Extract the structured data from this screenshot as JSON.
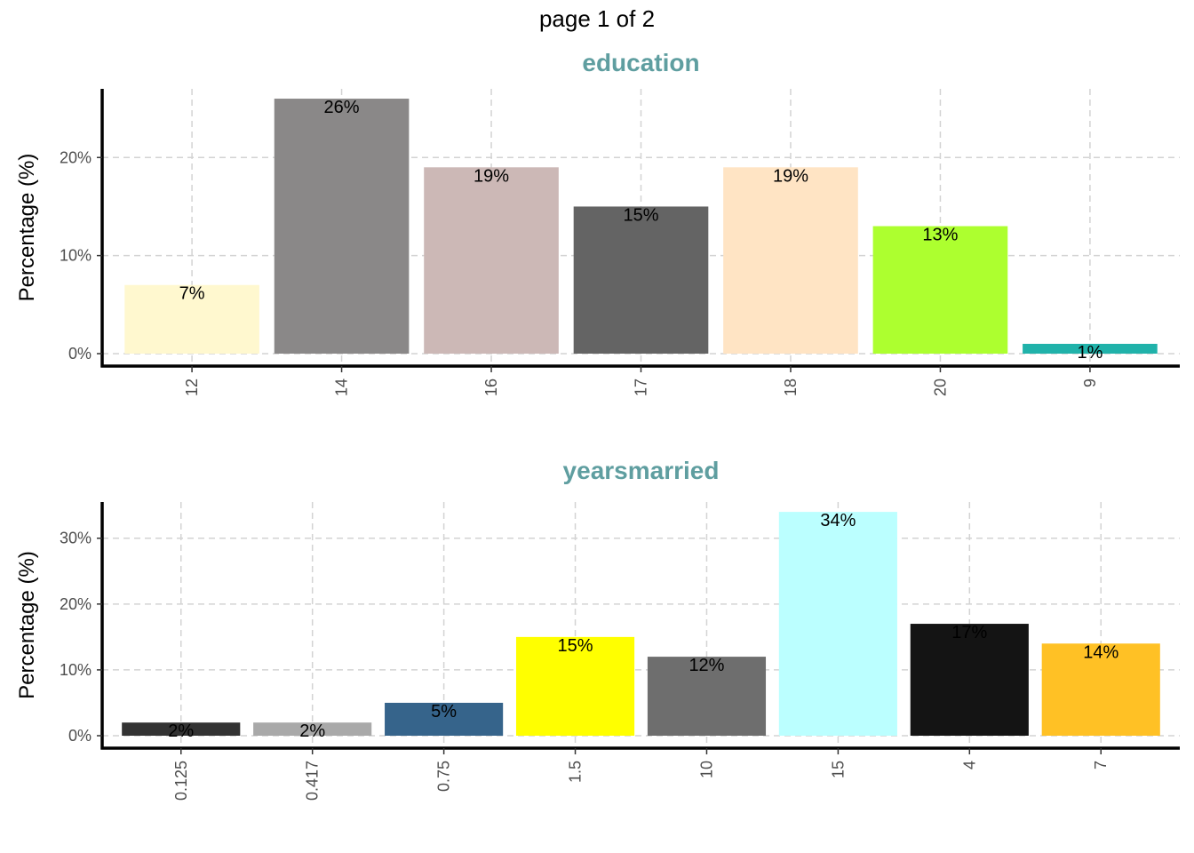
{
  "page_label": "page 1 of 2",
  "colors": {
    "title": "#5F9EA0",
    "grid": "#d3d3d3",
    "axis": "#000000"
  },
  "chart_data": [
    {
      "type": "bar",
      "title": "education",
      "ylabel": "Percentage (%)",
      "xlabel": "",
      "ylim": [
        0,
        27
      ],
      "yticks": [
        0,
        10,
        20
      ],
      "ytick_labels": [
        "0%",
        "10%",
        "20%"
      ],
      "grid": true,
      "categories": [
        "12",
        "14",
        "16",
        "17",
        "18",
        "20",
        "9"
      ],
      "values": [
        7,
        26,
        19,
        15,
        19,
        13,
        1
      ],
      "labels": [
        "7%",
        "26%",
        "19%",
        "15%",
        "19%",
        "13%",
        "1%"
      ],
      "colors": [
        "#FFF8CF",
        "#8A8888",
        "#CCB8B6",
        "#646464",
        "#FFE4C4",
        "#ADFF2F",
        "#20B2AA"
      ]
    },
    {
      "type": "bar",
      "title": "yearsmarried",
      "ylabel": "Percentage (%)",
      "xlabel": "",
      "ylim": [
        0,
        35.5
      ],
      "yticks": [
        0,
        10,
        20,
        30
      ],
      "ytick_labels": [
        "0%",
        "10%",
        "20%",
        "30%"
      ],
      "grid": true,
      "categories": [
        "0.125",
        "0.417",
        "0.75",
        "1.5",
        "10",
        "15",
        "4",
        "7"
      ],
      "values": [
        2,
        2,
        5,
        15,
        12,
        34,
        17,
        14
      ],
      "labels": [
        "2%",
        "2%",
        "5%",
        "15%",
        "12%",
        "34%",
        "17%",
        "14%"
      ],
      "colors": [
        "#333333",
        "#A9A9A9",
        "#36648B",
        "#FFFF00",
        "#6E6E6E",
        "#BBFFFF",
        "#141414",
        "#FFC125"
      ]
    }
  ]
}
